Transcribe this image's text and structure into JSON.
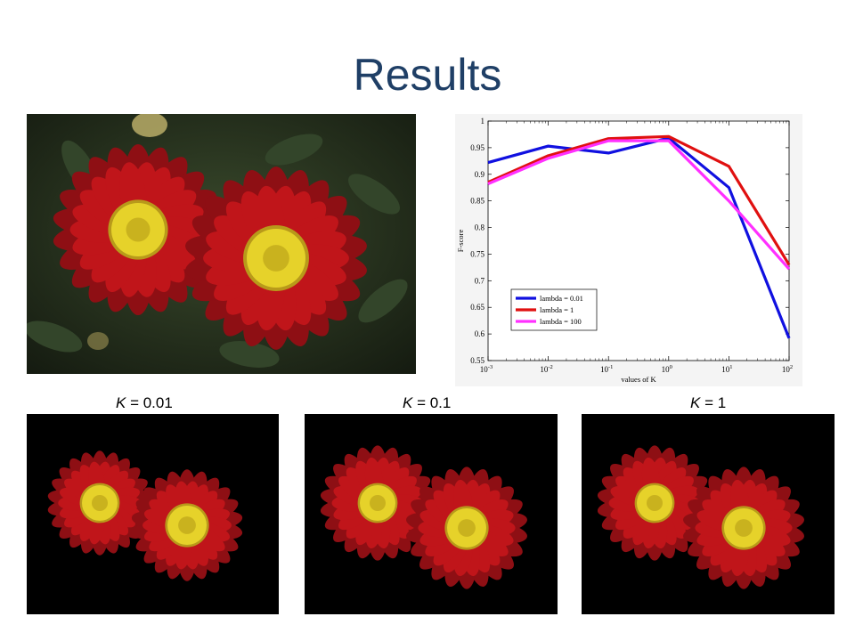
{
  "slide": {
    "title": "Results"
  },
  "segment_labels": [
    {
      "var": "K",
      "rest": " = 0.01"
    },
    {
      "var": "K",
      "rest": " = 0.1"
    },
    {
      "var": "K",
      "rest": " = 1"
    }
  ],
  "colors": {
    "title": "#1f3f66",
    "series_blue": "#1010e0",
    "series_red": "#e01010",
    "series_magenta": "#ff30ff",
    "petal": "#c0151a",
    "center": "#e6d22a"
  },
  "chart_data": {
    "type": "line",
    "xscale": "log",
    "x": [
      0.001,
      0.01,
      0.1,
      1,
      10,
      100
    ],
    "xticks": [
      {
        "value": 0.001,
        "base": "10",
        "exp": "-3"
      },
      {
        "value": 0.01,
        "base": "10",
        "exp": "-2"
      },
      {
        "value": 0.1,
        "base": "10",
        "exp": "-1"
      },
      {
        "value": 1,
        "base": "10",
        "exp": "0"
      },
      {
        "value": 10,
        "base": "10",
        "exp": "1"
      },
      {
        "value": 100,
        "base": "10",
        "exp": "2"
      }
    ],
    "ylim": [
      0.55,
      1
    ],
    "yticks": [
      "0.55",
      "0.6",
      "0.65",
      "0.7",
      "0.75",
      "0.8",
      "0.85",
      "0.9",
      "0.95",
      "1"
    ],
    "xlabel": "values of K",
    "ylabel": "F-score",
    "legend_position": "bottom-left",
    "series": [
      {
        "name": "lambda = 0.01",
        "color": "#1010e0",
        "values": [
          0.922,
          0.953,
          0.94,
          0.968,
          0.875,
          0.592
        ]
      },
      {
        "name": "lambda = 1",
        "color": "#e01010",
        "values": [
          0.885,
          0.935,
          0.967,
          0.971,
          0.915,
          0.73
        ]
      },
      {
        "name": "lambda = 100",
        "color": "#ff30ff",
        "values": [
          0.882,
          0.93,
          0.963,
          0.963,
          0.85,
          0.722
        ]
      }
    ]
  }
}
